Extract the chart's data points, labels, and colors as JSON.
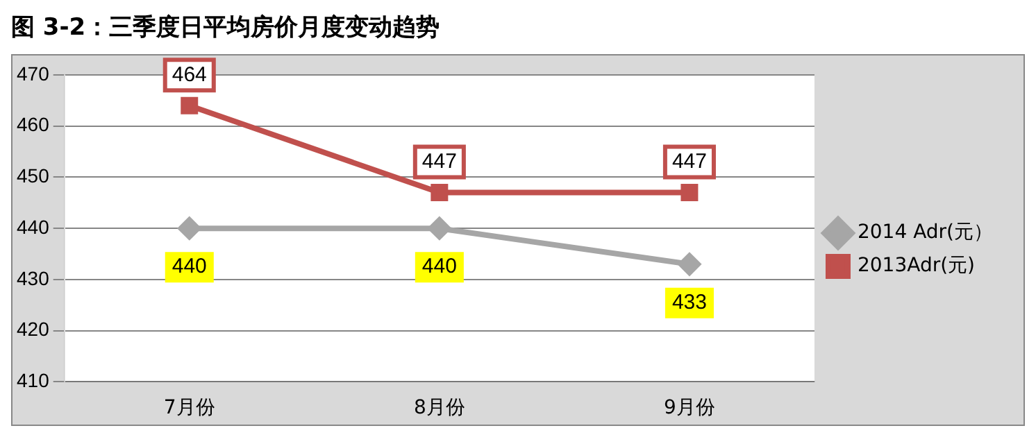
{
  "chart_data": {
    "type": "line",
    "title": "图 3-2：三季度日平均房价月度变动趋势",
    "categories": [
      "7月份",
      "8月份",
      "9月份"
    ],
    "series": [
      {
        "name": "2014 Adr(元）",
        "color": "#a6a6a6",
        "values": [
          440,
          440,
          433
        ],
        "marker": "diamond"
      },
      {
        "name": "2013Adr(元)",
        "color": "#c0504d",
        "values": [
          464,
          447,
          447
        ],
        "marker": "square"
      }
    ],
    "ylim": [
      410,
      470
    ],
    "yticks": [
      410,
      420,
      430,
      440,
      450,
      460,
      470
    ],
    "grid": "y",
    "legend": "right",
    "data_labels": true
  }
}
